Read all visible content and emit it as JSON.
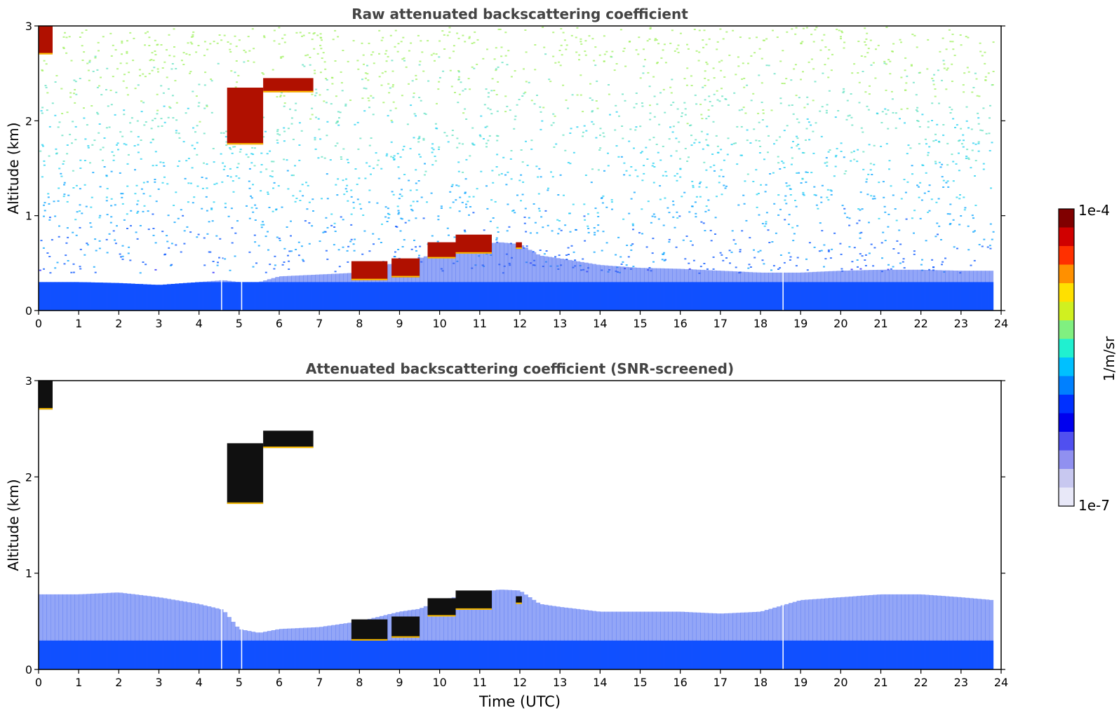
{
  "chart_data": [
    {
      "type": "heatmap",
      "title": "Raw attenuated backscattering coefficient",
      "ylabel": "Altitude (km)",
      "xlabel": "",
      "xlim": [
        0,
        24
      ],
      "ylim": [
        0,
        3
      ],
      "xticks": [
        "0",
        "1",
        "2",
        "3",
        "4",
        "5",
        "6",
        "7",
        "8",
        "9",
        "10",
        "11",
        "12",
        "13",
        "14",
        "15",
        "16",
        "17",
        "18",
        "19",
        "20",
        "21",
        "22",
        "23",
        "24"
      ],
      "yticks": [
        "0",
        "1",
        "2",
        "3"
      ],
      "log_color_scale": true,
      "noise_field": true,
      "boundary_layer_top_km": [
        [
          0,
          0.3
        ],
        [
          1,
          0.3
        ],
        [
          2,
          0.29
        ],
        [
          3,
          0.27
        ],
        [
          4,
          0.3
        ],
        [
          4.6,
          0.32
        ],
        [
          5,
          0.3
        ],
        [
          5.5,
          0.3
        ],
        [
          6,
          0.36
        ],
        [
          7,
          0.38
        ],
        [
          8,
          0.4
        ],
        [
          8.5,
          0.46
        ],
        [
          9,
          0.52
        ],
        [
          9.5,
          0.55
        ],
        [
          10,
          0.62
        ],
        [
          10.5,
          0.66
        ],
        [
          11,
          0.7
        ],
        [
          11.5,
          0.72
        ],
        [
          12,
          0.7
        ],
        [
          12.5,
          0.58
        ],
        [
          13,
          0.55
        ],
        [
          14,
          0.48
        ],
        [
          15,
          0.45
        ],
        [
          16,
          0.44
        ],
        [
          17,
          0.42
        ],
        [
          18,
          0.4
        ],
        [
          19,
          0.4
        ],
        [
          20,
          0.42
        ],
        [
          21,
          0.43
        ],
        [
          22,
          0.43
        ],
        [
          23,
          0.42
        ],
        [
          23.8,
          0.42
        ]
      ],
      "cloud_bands": [
        {
          "x": [
            0.0,
            0.35
          ],
          "y": [
            2.7,
            3.0
          ]
        },
        {
          "x": [
            4.7,
            5.6
          ],
          "y": [
            1.75,
            2.35
          ]
        },
        {
          "x": [
            5.6,
            6.85
          ],
          "y": [
            2.3,
            2.45
          ]
        },
        {
          "x": [
            7.8,
            8.7
          ],
          "y": [
            0.32,
            0.52
          ]
        },
        {
          "x": [
            8.8,
            9.5
          ],
          "y": [
            0.35,
            0.55
          ]
        },
        {
          "x": [
            9.7,
            10.4
          ],
          "y": [
            0.55,
            0.72
          ]
        },
        {
          "x": [
            10.4,
            11.3
          ],
          "y": [
            0.6,
            0.8
          ]
        },
        {
          "x": [
            11.9,
            12.05
          ],
          "y": [
            0.65,
            0.72
          ]
        }
      ],
      "gaps_utc": [
        4.55,
        5.05,
        18.55
      ]
    },
    {
      "type": "heatmap",
      "title": "Attenuated backscattering coefficient (SNR-screened)",
      "ylabel": "Altitude (km)",
      "xlabel": "Time (UTC)",
      "xlim": [
        0,
        24
      ],
      "ylim": [
        0,
        3
      ],
      "xticks": [
        "0",
        "1",
        "2",
        "3",
        "4",
        "5",
        "6",
        "7",
        "8",
        "9",
        "10",
        "11",
        "12",
        "13",
        "14",
        "15",
        "16",
        "17",
        "18",
        "19",
        "20",
        "21",
        "22",
        "23",
        "24"
      ],
      "yticks": [
        "0",
        "1",
        "2",
        "3"
      ],
      "log_color_scale": true,
      "noise_field": false,
      "boundary_layer_top_km": [
        [
          0,
          0.78
        ],
        [
          1,
          0.78
        ],
        [
          2,
          0.8
        ],
        [
          3,
          0.75
        ],
        [
          4,
          0.68
        ],
        [
          4.6,
          0.62
        ],
        [
          5,
          0.42
        ],
        [
          5.5,
          0.38
        ],
        [
          6,
          0.42
        ],
        [
          7,
          0.44
        ],
        [
          8,
          0.5
        ],
        [
          8.5,
          0.55
        ],
        [
          9,
          0.6
        ],
        [
          9.5,
          0.63
        ],
        [
          10,
          0.72
        ],
        [
          10.5,
          0.76
        ],
        [
          11,
          0.8
        ],
        [
          11.5,
          0.83
        ],
        [
          12,
          0.82
        ],
        [
          12.5,
          0.68
        ],
        [
          13,
          0.65
        ],
        [
          14,
          0.6
        ],
        [
          15,
          0.6
        ],
        [
          16,
          0.6
        ],
        [
          17,
          0.58
        ],
        [
          18,
          0.6
        ],
        [
          19,
          0.72
        ],
        [
          20,
          0.75
        ],
        [
          21,
          0.78
        ],
        [
          22,
          0.78
        ],
        [
          23,
          0.75
        ],
        [
          23.8,
          0.72
        ]
      ],
      "cloud_bands": [
        {
          "x": [
            0.0,
            0.35
          ],
          "y": [
            2.7,
            3.0
          ]
        },
        {
          "x": [
            4.7,
            5.6
          ],
          "y": [
            1.72,
            2.35
          ]
        },
        {
          "x": [
            5.6,
            6.85
          ],
          "y": [
            2.3,
            2.48
          ]
        },
        {
          "x": [
            7.8,
            8.7
          ],
          "y": [
            0.3,
            0.52
          ]
        },
        {
          "x": [
            8.8,
            9.5
          ],
          "y": [
            0.33,
            0.55
          ]
        },
        {
          "x": [
            9.7,
            10.4
          ],
          "y": [
            0.55,
            0.74
          ]
        },
        {
          "x": [
            10.4,
            11.3
          ],
          "y": [
            0.62,
            0.82
          ]
        },
        {
          "x": [
            11.9,
            12.05
          ],
          "y": [
            0.68,
            0.76
          ]
        }
      ],
      "gaps_utc": [
        4.55,
        5.05,
        18.55
      ]
    }
  ],
  "colorbar": {
    "label": "1/m/sr",
    "max_label": "1e-4",
    "min_label": "1e-7",
    "colors": [
      "#e8e8f8",
      "#c8c8f0",
      "#9090f0",
      "#5050f0",
      "#0000ee",
      "#0030ff",
      "#0080ff",
      "#00c0ff",
      "#20f0d0",
      "#80f080",
      "#d0f020",
      "#ffe000",
      "#ff9000",
      "#ff3000",
      "#d00000",
      "#800000"
    ]
  }
}
